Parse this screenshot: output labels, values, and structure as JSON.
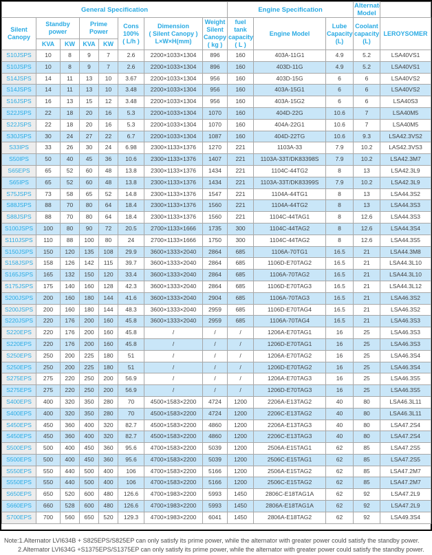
{
  "colors": {
    "accent": "#29aae3",
    "stripe": "#c9e6f8",
    "firstcol": "#ededed",
    "border": "#a6a6a6",
    "text": "#404040",
    "notetext": "#4d4d4d",
    "frame": "#000000"
  },
  "header": {
    "groups": [
      {
        "name": "group-general-specification",
        "label": "General Specification",
        "colspan": 8
      },
      {
        "name": "group-engine-specification",
        "label": "Engine Specification",
        "colspan": 3
      },
      {
        "name": "group-alternator-model",
        "label": "Alternator Model",
        "colspan": 1
      }
    ],
    "columns": [
      {
        "key": "silent_canopy",
        "label": "Silent\nCanopy",
        "rowspan": 2
      },
      {
        "key": "standby_power",
        "label": "Standby\npower",
        "colspan": 2
      },
      {
        "key": "prime_power",
        "label": "Prime Power",
        "colspan": 2
      },
      {
        "key": "cons",
        "label": "Cons\n100%\n( L/h )",
        "rowspan": 2
      },
      {
        "key": "dimension",
        "label": "Dimension\n( Silent Canopy )\nL×W×H(mm)",
        "rowspan": 2
      },
      {
        "key": "weight",
        "label": "Weight\nSilent\nCanopy\n( kg )",
        "rowspan": 2
      },
      {
        "key": "fuel_tank",
        "label": "fuel tank\ncapacity\n( L )",
        "rowspan": 2
      },
      {
        "key": "engine_model",
        "label": "Engine Model",
        "rowspan": 2
      },
      {
        "key": "lube_capacity",
        "label": "Lube\nCapacity\n(L)",
        "rowspan": 2
      },
      {
        "key": "coolant_capacity",
        "label": "Coolant\ncapacity\n(L)",
        "rowspan": 2
      },
      {
        "key": "alternator",
        "label": "LEROYSOMER",
        "rowspan": 2
      }
    ],
    "subcolumns": [
      {
        "key": "standby_kva",
        "label": "KVA"
      },
      {
        "key": "standby_kw",
        "label": "KW"
      },
      {
        "key": "prime_kva",
        "label": "KVA"
      },
      {
        "key": "prime_kw",
        "label": "KW"
      }
    ]
  },
  "table": {
    "column_keys": [
      "silent-canopy",
      "standby-kva",
      "standby-kw",
      "prime-kva",
      "prime-kw",
      "cons",
      "dimension",
      "weight",
      "fuel-tank",
      "engine-model",
      "lube-capacity",
      "coolant-capacity",
      "alternator"
    ],
    "rows": [
      [
        "S10JSPS",
        "10",
        "8",
        "9",
        "7",
        "2.6",
        "2200×1033×1304",
        "896",
        "160",
        "403A-11G1",
        "4.9",
        "5.2",
        "LSA40VS1"
      ],
      [
        "S10JSPS",
        "10",
        "8",
        "9",
        "7",
        "2.6",
        "2200×1033×1304",
        "896",
        "160",
        "403D-11G",
        "4.9",
        "5.2",
        "LSA40VS1"
      ],
      [
        "S14JSPS",
        "14",
        "11",
        "13",
        "10",
        "3.67",
        "2200×1033×1304",
        "956",
        "160",
        "403D-15G",
        "6",
        "6",
        "LSA40VS2"
      ],
      [
        "S14JSPS",
        "14",
        "11",
        "13",
        "10",
        "3.48",
        "2200×1033×1304",
        "956",
        "160",
        "403A-15G1",
        "6",
        "6",
        "LSA40VS2"
      ],
      [
        "S16JSPS",
        "16",
        "13",
        "15",
        "12",
        "3.48",
        "2200×1033×1304",
        "956",
        "160",
        "403A-15G2",
        "6",
        "6",
        "LSA40S3"
      ],
      [
        "S22JSPS",
        "22",
        "18",
        "20",
        "16",
        "5.3",
        "2200×1033×1304",
        "1070",
        "160",
        "404D-22G",
        "10.6",
        "7",
        "LSA40M5"
      ],
      [
        "S22JSPS",
        "22",
        "18",
        "20",
        "16",
        "5.3",
        "2200×1033×1304",
        "1070",
        "160",
        "404A-22G1",
        "10.6",
        "7",
        "LSA40M5"
      ],
      [
        "S30JSPS",
        "30",
        "24",
        "27",
        "22",
        "6.7",
        "2200×1033×1304",
        "1087",
        "160",
        "404D-22TG",
        "10.6",
        "9.3",
        "LSA42.3VS2"
      ],
      [
        "S33IPS",
        "33",
        "26",
        "30",
        "24",
        "6.98",
        "2300×1133×1376",
        "1270",
        "221",
        "1103A-33",
        "7.9",
        "10.2",
        "LAS42.3VS3"
      ],
      [
        "S50IPS",
        "50",
        "40",
        "45",
        "36",
        "10.6",
        "2300×1133×1376",
        "1407",
        "221",
        "1103A-33T/DK83398S",
        "7.9",
        "10.2",
        "LSA42.3M7"
      ],
      [
        "S65EPS",
        "65",
        "52",
        "60",
        "48",
        "13.8",
        "2300×1133×1376",
        "1434",
        "221",
        "1104C-44TG2",
        "8",
        "13",
        "LSA42.3L9"
      ],
      [
        "S65IPS",
        "65",
        "52",
        "60",
        "48",
        "13.8",
        "2300×1133×1376",
        "1434",
        "221",
        "1103A-33T/DK83399S",
        "7.9",
        "10.2",
        "LSA42.3L9"
      ],
      [
        "S75JSPS",
        "73",
        "58",
        "65",
        "52",
        "14.8",
        "2300×1133×1376",
        "1547",
        "221",
        "1104A-44TG1",
        "8",
        "13",
        "LSA44.3S2"
      ],
      [
        "S88JSPS",
        "88",
        "70",
        "80",
        "64",
        "18.4",
        "2300×1133×1376",
        "1560",
        "221",
        "1104A-44TG2",
        "8",
        "13",
        "LSA44.3S3"
      ],
      [
        "S88JSPS",
        "88",
        "70",
        "80",
        "64",
        "18.4",
        "2300×1133×1376",
        "1560",
        "221",
        "1104C-44TAG1",
        "8",
        "12.6",
        "LSA44.3S3"
      ],
      [
        "S100JSPS",
        "100",
        "80",
        "90",
        "72",
        "20.5",
        "2700×1133×1666",
        "1735",
        "300",
        "1104C-44TAG2",
        "8",
        "12.6",
        "LSA44.3S4"
      ],
      [
        "S110JSPS",
        "110",
        "88",
        "100",
        "80",
        "24",
        "2700×1133×1666",
        "1750",
        "300",
        "1104C-44TAG2",
        "8",
        "12.6",
        "LSA44.3S5"
      ],
      [
        "S150JSPS",
        "150",
        "120",
        "135",
        "108",
        "29.9",
        "3600×1333×2040",
        "2864",
        "685",
        "1106A-70TG1",
        "16.5",
        "21",
        "LSA44.3M8"
      ],
      [
        "S158JSPS",
        "158",
        "126",
        "142",
        "115",
        "39.7",
        "3600×1333×2040",
        "2864",
        "685",
        "1106D-E70TAG2",
        "16.5",
        "21",
        "LSA44.3L10"
      ],
      [
        "S165JSPS",
        "165",
        "132",
        "150",
        "120",
        "33.4",
        "3600×1333×2040",
        "2864",
        "685",
        "1106A-70TAG2",
        "16.5",
        "21",
        "LSA44.3L10"
      ],
      [
        "S175JSPS",
        "175",
        "140",
        "160",
        "128",
        "42.3",
        "3600×1333×2040",
        "2864",
        "685",
        "1106D-E70TAG3",
        "16.5",
        "21",
        "LSA44.3L12"
      ],
      [
        "S200JSPS",
        "200",
        "160",
        "180",
        "144",
        "41.6",
        "3600×1333×2040",
        "2904",
        "685",
        "1106A-70TAG3",
        "16.5",
        "21",
        "LSA46.3S2"
      ],
      [
        "S200JSPS",
        "200",
        "160",
        "180",
        "144",
        "48.3",
        "3600×1333×2040",
        "2959",
        "685",
        "1106D-E70TAG4",
        "16.5",
        "21",
        "LSA46.3S2"
      ],
      [
        "S220JSPS",
        "220",
        "176",
        "200",
        "160",
        "45.8",
        "3600×1333×2040",
        "2959",
        "685",
        "1106A-70TAG4",
        "16.5",
        "21",
        "LSA46.3S3"
      ],
      [
        "S220EPS",
        "220",
        "176",
        "200",
        "160",
        "45.8",
        "/",
        "/",
        "/",
        "1206A-E70TAG1",
        "16",
        "25",
        "LSA46.3S3"
      ],
      [
        "S220EPS",
        "220",
        "176",
        "200",
        "160",
        "45.8",
        "/",
        "/",
        "/",
        "1206D-E70TAG1",
        "16",
        "25",
        "LSA46.3S3"
      ],
      [
        "S250EPS",
        "250",
        "200",
        "225",
        "180",
        "51",
        "/",
        "/",
        "/",
        "1206A-E70TAG2",
        "16",
        "25",
        "LSA46.3S4"
      ],
      [
        "S250EPS",
        "250",
        "200",
        "225",
        "180",
        "51",
        "/",
        "/",
        "/",
        "1206D-E70TAG2",
        "16",
        "25",
        "LSA46.3S4"
      ],
      [
        "S275EPS",
        "275",
        "220",
        "250",
        "200",
        "56.9",
        "/",
        "/",
        "/",
        "1206A-E70TAG3",
        "16",
        "25",
        "LSA46.3S5"
      ],
      [
        "S275EPS",
        "275",
        "220",
        "250",
        "200",
        "56.9",
        "/",
        "/",
        "/",
        "1206D-E70TAG3",
        "16",
        "25",
        "LSA46.3S5"
      ],
      [
        "S400EPS",
        "400",
        "320",
        "350",
        "280",
        "70",
        "4500×1583×2200",
        "4724",
        "1200",
        "2206A-E13TAG2",
        "40",
        "80",
        "LSA46.3L11"
      ],
      [
        "S400EPS",
        "400",
        "320",
        "350",
        "280",
        "70",
        "4500×1583×2200",
        "4724",
        "1200",
        "2206C-E13TAG2",
        "40",
        "80",
        "LSA46.3L11"
      ],
      [
        "S450EPS",
        "450",
        "360",
        "400",
        "320",
        "82.7",
        "4500×1583×2200",
        "4860",
        "1200",
        "2206A-E13TAG3",
        "40",
        "80",
        "LSA47.2S4"
      ],
      [
        "S450EPS",
        "450",
        "360",
        "400",
        "320",
        "82.7",
        "4500×1583×2200",
        "4860",
        "1200",
        "2206C-E13TAG3",
        "40",
        "80",
        "LSA47.2S4"
      ],
      [
        "S500EPS",
        "500",
        "400",
        "450",
        "360",
        "95.6",
        "4700×1583×2200",
        "5039",
        "1200",
        "2506A-E15TAG1",
        "62",
        "85",
        "LSA47.2S5"
      ],
      [
        "S500EPS",
        "500",
        "400",
        "450",
        "360",
        "95.6",
        "4700×1583×2200",
        "5039",
        "1200",
        "2506C-E15TAG1",
        "62",
        "85",
        "LSA47.2S5"
      ],
      [
        "S550EPS",
        "550",
        "440",
        "500",
        "400",
        "106",
        "4700×1583×2200",
        "5166",
        "1200",
        "2506A-E15TAG2",
        "62",
        "85",
        "LSA47.2M7"
      ],
      [
        "S550EPS",
        "550",
        "440",
        "500",
        "400",
        "106",
        "4700×1583×2200",
        "5166",
        "1200",
        "2506C-E15TAG2",
        "62",
        "85",
        "LSA47.2M7"
      ],
      [
        "S650EPS",
        "650",
        "520",
        "600",
        "480",
        "126.6",
        "4700×1983×2200",
        "5993",
        "1450",
        "2806C-E18TAG1A",
        "62",
        "92",
        "LSA47.2L9"
      ],
      [
        "S660EPS",
        "660",
        "528",
        "600",
        "480",
        "126.6",
        "4700×1983×2200",
        "5993",
        "1450",
        "2806A-E18TAG1A",
        "62",
        "92",
        "LSA47.2L9"
      ],
      [
        "S700EPS",
        "700",
        "560",
        "650",
        "520",
        "129.3",
        "4700×1983×2200",
        "6041",
        "1450",
        "2806A-E18TAG2",
        "62",
        "92",
        "LSA49.3S4"
      ]
    ]
  },
  "notes": {
    "line1": "Note:1.Alternator LVI634B + S825EPS/S825EP can only satisfy its prime power, while the alternator with greater power could satisfy the standby power.",
    "line2": "2.Alternator LVI634G +S1375EPS/S1375EP can only satisfy its prime power, while the alternator with greater power could satisfy the standby power."
  }
}
